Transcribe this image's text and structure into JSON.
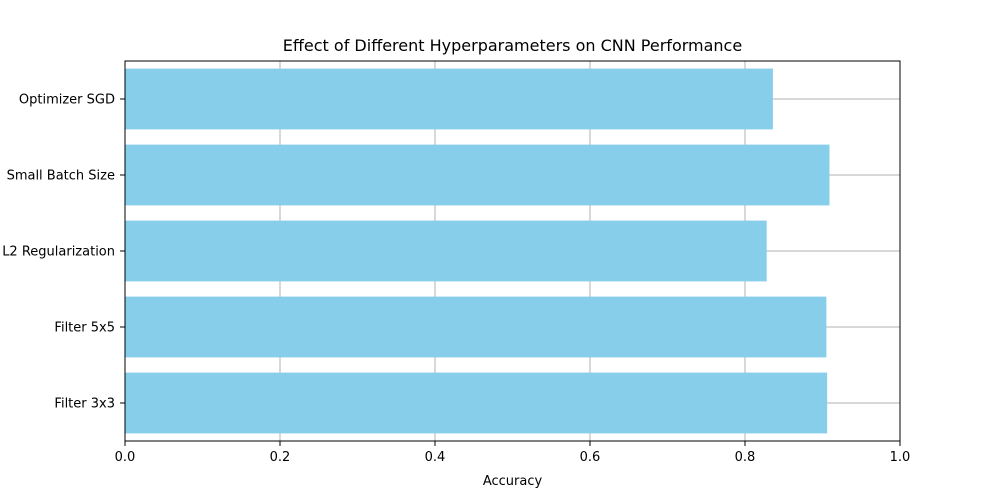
{
  "chart_data": {
    "type": "bar",
    "orientation": "horizontal",
    "title": "Effect of Different Hyperparameters on CNN Performance",
    "xlabel": "Accuracy",
    "ylabel": "",
    "categories": [
      "Filter 3x3",
      "Filter 5x5",
      "L2 Regularization",
      "Small Batch Size",
      "Optimizer SGD"
    ],
    "values": [
      0.906,
      0.905,
      0.828,
      0.909,
      0.836
    ],
    "xlim": [
      0,
      1
    ],
    "xticks": [
      "0.0",
      "0.2",
      "0.4",
      "0.6",
      "0.8",
      "1.0"
    ],
    "grid": true,
    "bar_color": "#87ceeb",
    "grid_color": "#b0b0b0"
  }
}
